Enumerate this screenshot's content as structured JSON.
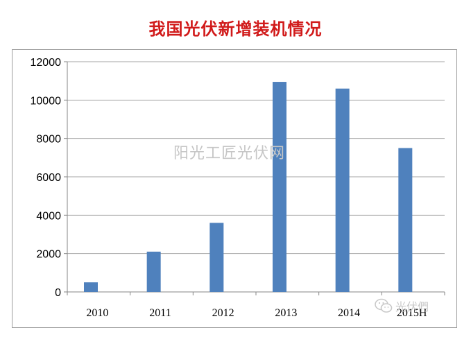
{
  "chart_data": {
    "type": "bar",
    "title": "我国光伏新增装机情况",
    "categories": [
      "2010",
      "2011",
      "2012",
      "2013",
      "2014",
      "2015H"
    ],
    "values": [
      500,
      2100,
      3600,
      10950,
      10600,
      7500
    ],
    "yticks": [
      0,
      2000,
      4000,
      6000,
      8000,
      10000,
      12000
    ],
    "ylim": [
      0,
      12000
    ],
    "xlabel": "",
    "ylabel": "",
    "grid": true,
    "legend": "none",
    "bar_color": "#4f81bd"
  },
  "watermark": "阳光工匠光伏网",
  "account_mark": {
    "icon": "wechat-icon",
    "text": "光伏們"
  }
}
